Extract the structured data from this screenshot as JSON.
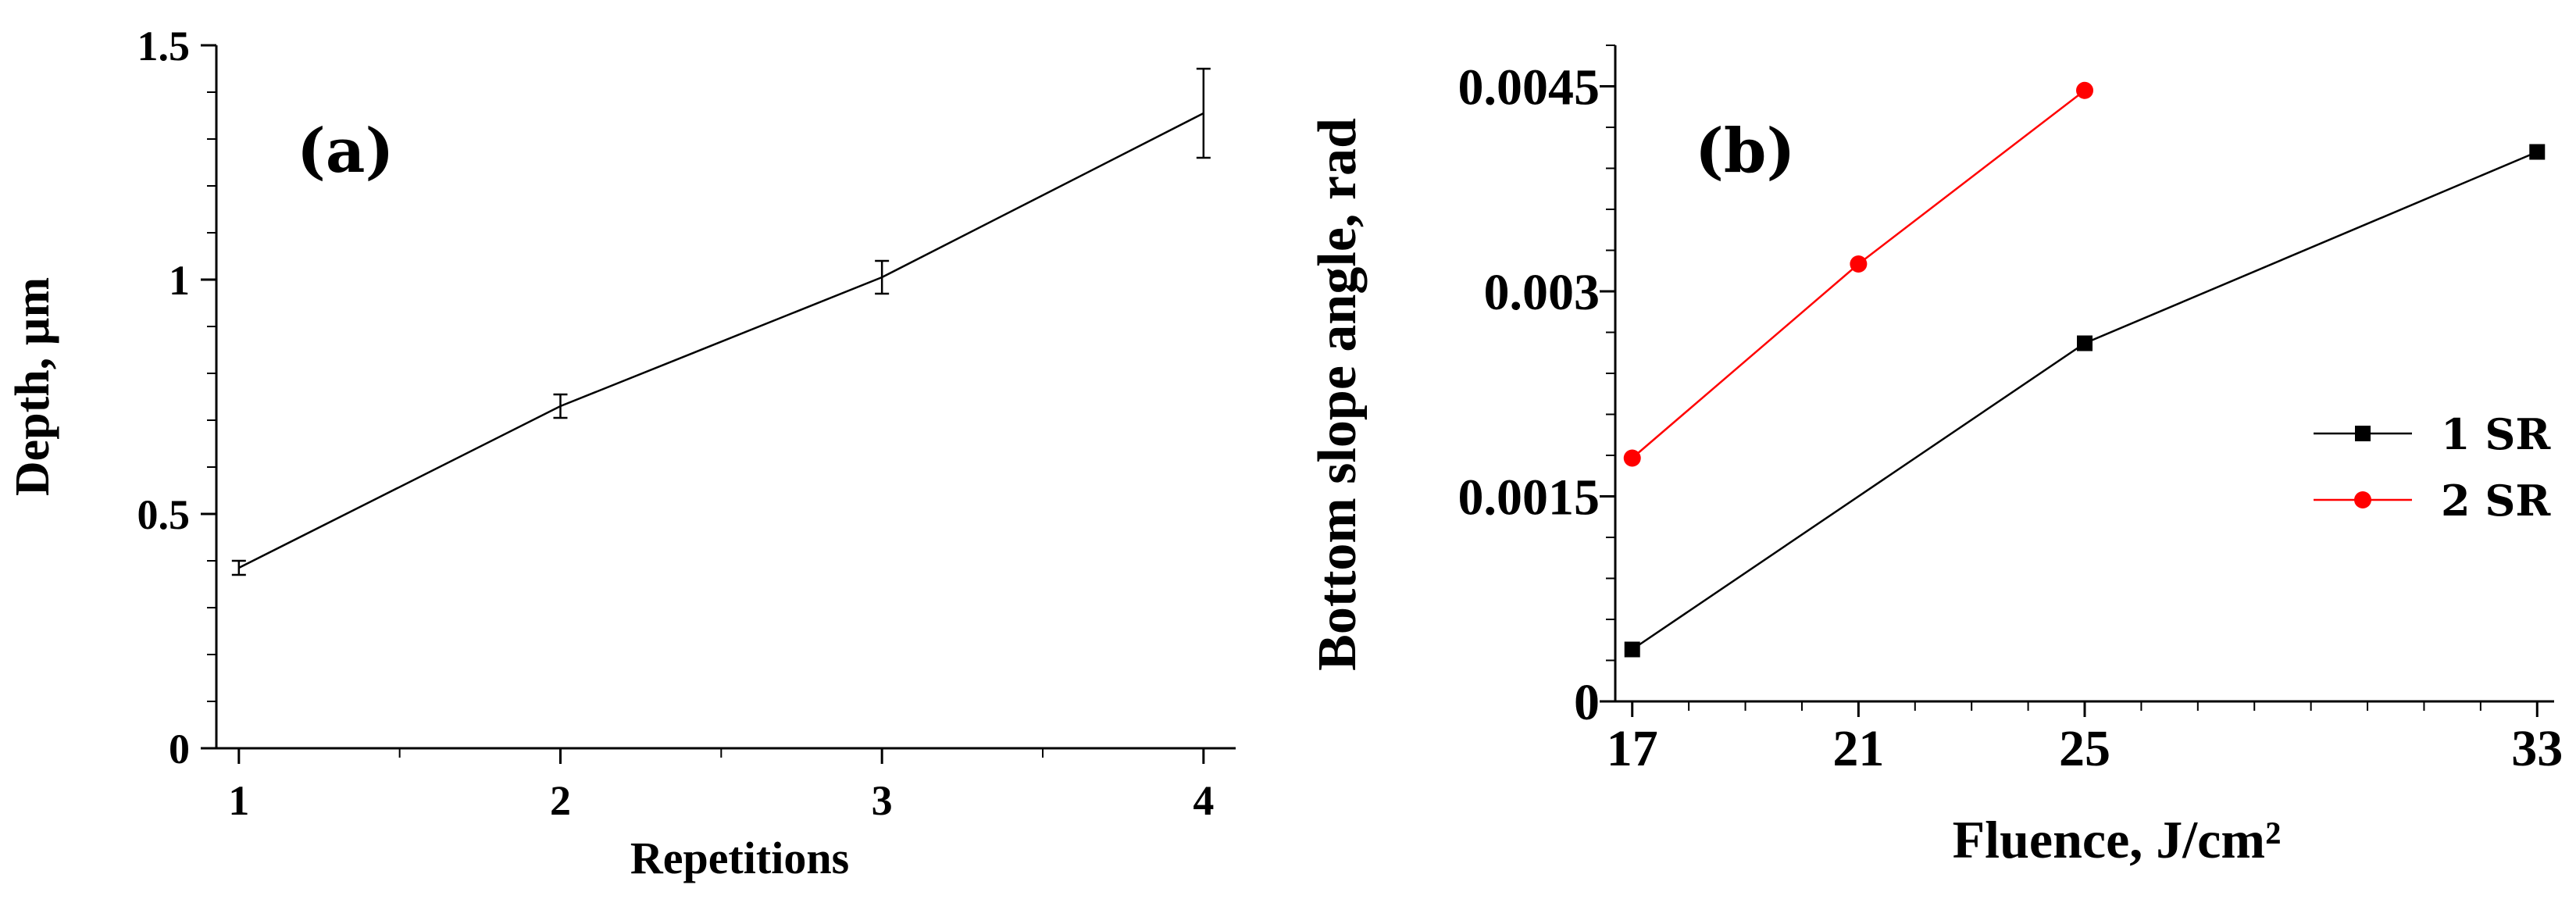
{
  "chart_data": [
    {
      "type": "line",
      "panel_label": "(a)",
      "xlabel": "Repetitions",
      "ylabel": "Depth, µm",
      "xlim": [
        0.93,
        4.1
      ],
      "ylim": [
        0,
        1.5
      ],
      "x_ticks": [
        1,
        2,
        3,
        4
      ],
      "x_tick_labels": [
        "1",
        "2",
        "3",
        "4"
      ],
      "y_ticks": [
        0,
        0.5,
        1,
        1.5
      ],
      "y_tick_labels": [
        "0",
        "0.5",
        "1",
        "1.5"
      ],
      "grid": false,
      "series": [
        {
          "x": [
            1,
            2,
            3,
            4
          ],
          "y": [
            0.385,
            0.73,
            1.005,
            1.355
          ],
          "error": [
            0.015,
            0.025,
            0.035,
            0.095
          ],
          "color": "#000000"
        }
      ]
    },
    {
      "type": "line",
      "panel_label": "(b)",
      "xlabel": "Fluence, J/cm²",
      "ylabel": "Bottom slope angle, rad",
      "xlim": [
        16.7,
        33.3
      ],
      "ylim": [
        0,
        0.0048
      ],
      "x_ticks": [
        17,
        21,
        25,
        33
      ],
      "x_tick_labels": [
        "17",
        "21",
        "25",
        "33"
      ],
      "y_ticks": [
        0,
        0.0015,
        0.003,
        0.0045
      ],
      "y_tick_labels": [
        "0",
        "0.0015",
        "0.003",
        "0.0045"
      ],
      "grid": false,
      "legend_position": "right",
      "series": [
        {
          "name": "1 SR",
          "marker": "square",
          "color": "#000000",
          "x": [
            17,
            25,
            33
          ],
          "y": [
            0.00038,
            0.00262,
            0.00402
          ]
        },
        {
          "name": "2 SR",
          "marker": "circle",
          "color": "#ff0000",
          "x": [
            17,
            21,
            25
          ],
          "y": [
            0.00178,
            0.0032,
            0.00447
          ]
        }
      ]
    }
  ]
}
